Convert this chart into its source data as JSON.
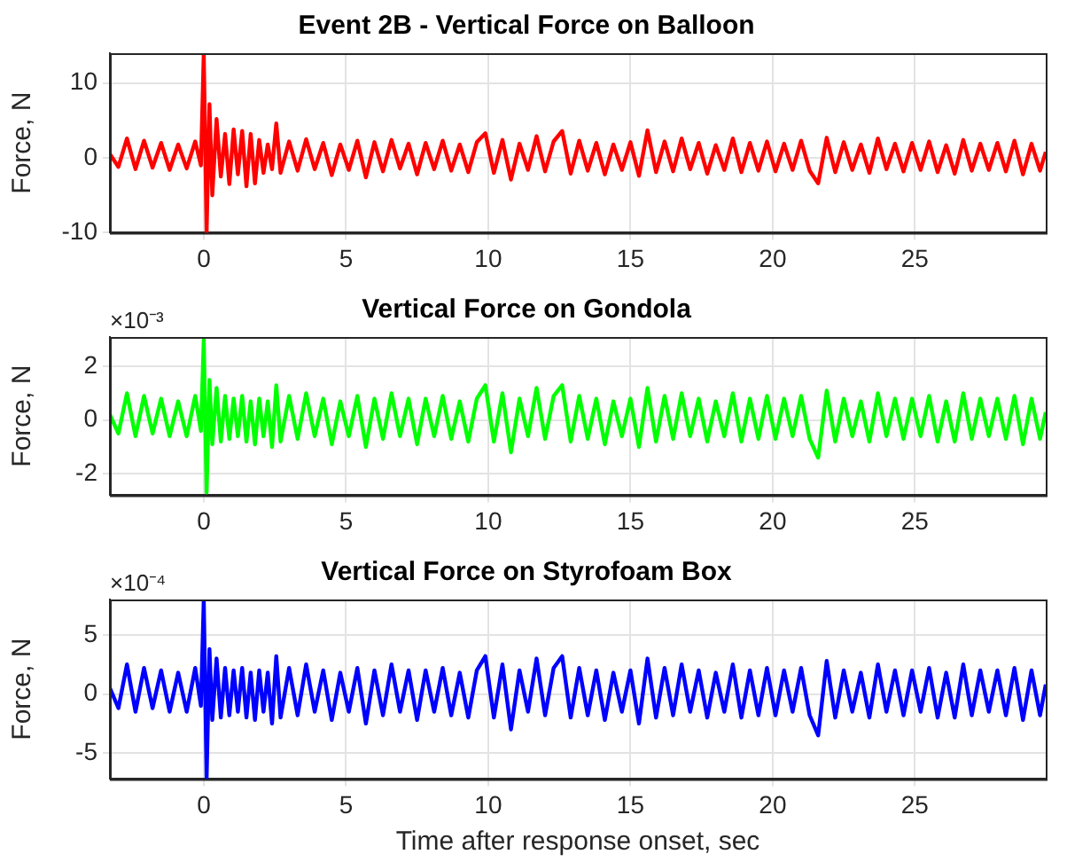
{
  "chart_data": [
    {
      "type": "line",
      "title": "Event 2B - Vertical Force on Balloon",
      "ylabel": "Force, N",
      "x": [
        -3.3,
        -3.0,
        -2.7,
        -2.4,
        -2.1,
        -1.8,
        -1.5,
        -1.2,
        -0.9,
        -0.6,
        -0.3,
        -0.1,
        0,
        0.1,
        0.2,
        0.3,
        0.45,
        0.6,
        0.75,
        0.9,
        1.05,
        1.2,
        1.35,
        1.5,
        1.65,
        1.8,
        1.95,
        2.1,
        2.25,
        2.4,
        2.55,
        2.7,
        3.0,
        3.3,
        3.6,
        3.9,
        4.2,
        4.5,
        4.8,
        5.1,
        5.4,
        5.7,
        6.0,
        6.3,
        6.6,
        6.9,
        7.2,
        7.5,
        7.8,
        8.1,
        8.4,
        8.7,
        9.0,
        9.3,
        9.6,
        9.9,
        10.2,
        10.5,
        10.8,
        11.1,
        11.4,
        11.7,
        12.0,
        12.3,
        12.6,
        12.9,
        13.2,
        13.5,
        13.8,
        14.1,
        14.4,
        14.7,
        15.0,
        15.3,
        15.6,
        15.9,
        16.2,
        16.5,
        16.8,
        17.1,
        17.4,
        17.7,
        18.0,
        18.3,
        18.6,
        18.9,
        19.2,
        19.5,
        19.8,
        20.1,
        20.4,
        20.7,
        21.0,
        21.3,
        21.6,
        21.9,
        22.2,
        22.5,
        22.8,
        23.1,
        23.4,
        23.7,
        24.0,
        24.3,
        24.6,
        24.9,
        25.2,
        25.5,
        25.8,
        26.1,
        26.4,
        26.7,
        27.0,
        27.3,
        27.6,
        27.9,
        28.2,
        28.5,
        28.8,
        29.1,
        29.4,
        29.6
      ],
      "series": [
        {
          "color": "#ff0000",
          "values": [
            0.5,
            -1.2,
            2.6,
            -1.5,
            2.3,
            -1.3,
            2.0,
            -1.6,
            1.8,
            -1.4,
            2.2,
            -1.0,
            14,
            -10,
            7.2,
            -5,
            5.2,
            -2.5,
            3.2,
            -3.5,
            3.8,
            -2.2,
            3.6,
            -3.8,
            3.2,
            -3.4,
            2.4,
            -2.0,
            1.8,
            -1.5,
            4.6,
            -2.0,
            2.2,
            -1.7,
            2.5,
            -1.5,
            2.0,
            -2.3,
            1.8,
            -1.6,
            2.3,
            -2.6,
            2.1,
            -1.8,
            2.4,
            -1.4,
            1.9,
            -2.2,
            2.0,
            -1.5,
            2.3,
            -1.7,
            1.8,
            -1.9,
            2.1,
            3.3,
            -2.0,
            2.4,
            -2.9,
            1.9,
            -1.6,
            2.9,
            -1.8,
            2.2,
            3.6,
            -2.1,
            2.3,
            -1.7,
            2.0,
            -2.2,
            1.8,
            -1.6,
            2.1,
            -2.4,
            3.7,
            -1.9,
            2.2,
            -1.8,
            2.6,
            -1.5,
            2.0,
            -2.1,
            1.7,
            -1.6,
            2.6,
            -1.9,
            2.0,
            -1.7,
            2.2,
            -1.8,
            1.9,
            -1.6,
            2.3,
            -1.7,
            -3.4,
            2.7,
            -1.9,
            2.1,
            -1.6,
            1.8,
            -2.0,
            2.6,
            -1.5,
            1.9,
            -1.8,
            2.0,
            -1.6,
            2.2,
            -1.9,
            1.7,
            -2.1,
            2.4,
            -1.7,
            1.9,
            -1.6,
            2.0,
            -1.8,
            2.3,
            -2.2,
            1.9,
            -1.7,
            0.8
          ]
        }
      ],
      "xlim": [
        -3.3,
        29.6
      ],
      "xticks": [
        0,
        5,
        10,
        15,
        20,
        25
      ],
      "ylim": [
        -10,
        14
      ],
      "yticks": [
        -10,
        0,
        10
      ],
      "grid": true,
      "legend": false,
      "marker": "none",
      "line_style": "solid"
    },
    {
      "type": "line",
      "title": "Vertical Force on Gondola",
      "ylabel": "Force, N",
      "annotations": [
        "×10⁻³"
      ],
      "x": [
        -3.3,
        -3.0,
        -2.7,
        -2.4,
        -2.1,
        -1.8,
        -1.5,
        -1.2,
        -0.9,
        -0.6,
        -0.3,
        -0.1,
        0,
        0.1,
        0.2,
        0.3,
        0.45,
        0.6,
        0.75,
        0.9,
        1.05,
        1.2,
        1.35,
        1.5,
        1.65,
        1.8,
        1.95,
        2.1,
        2.25,
        2.4,
        2.55,
        2.7,
        3.0,
        3.3,
        3.6,
        3.9,
        4.2,
        4.5,
        4.8,
        5.1,
        5.4,
        5.7,
        6.0,
        6.3,
        6.6,
        6.9,
        7.2,
        7.5,
        7.8,
        8.1,
        8.4,
        8.7,
        9.0,
        9.3,
        9.6,
        9.9,
        10.2,
        10.5,
        10.8,
        11.1,
        11.4,
        11.7,
        12.0,
        12.3,
        12.6,
        12.9,
        13.2,
        13.5,
        13.8,
        14.1,
        14.4,
        14.7,
        15.0,
        15.3,
        15.6,
        15.9,
        16.2,
        16.5,
        16.8,
        17.1,
        17.4,
        17.7,
        18.0,
        18.3,
        18.6,
        18.9,
        19.2,
        19.5,
        19.8,
        20.1,
        20.4,
        20.7,
        21.0,
        21.3,
        21.6,
        21.9,
        22.2,
        22.5,
        22.8,
        23.1,
        23.4,
        23.7,
        24.0,
        24.3,
        24.6,
        24.9,
        25.2,
        25.5,
        25.8,
        26.1,
        26.4,
        26.7,
        27.0,
        27.3,
        27.6,
        27.9,
        28.2,
        28.5,
        28.8,
        29.1,
        29.4,
        29.6
      ],
      "series": [
        {
          "color": "#00ff00",
          "values": [
            0.2,
            -0.5,
            1.0,
            -0.6,
            0.9,
            -0.5,
            0.8,
            -0.6,
            0.7,
            -0.6,
            0.9,
            -0.4,
            3.0,
            -2.7,
            1.5,
            -0.9,
            1.2,
            -0.8,
            0.9,
            -0.7,
            0.8,
            -0.6,
            0.9,
            -0.8,
            0.7,
            -0.9,
            0.8,
            -0.6,
            0.7,
            -1.0,
            1.3,
            -0.8,
            0.9,
            -0.7,
            1.0,
            -0.6,
            0.8,
            -0.9,
            0.7,
            -0.6,
            0.9,
            -1.0,
            0.8,
            -0.7,
            1.0,
            -0.6,
            0.8,
            -0.9,
            0.8,
            -0.6,
            0.9,
            -0.7,
            0.7,
            -0.8,
            0.8,
            1.3,
            -0.8,
            1.0,
            -1.2,
            0.8,
            -0.6,
            1.2,
            -0.7,
            0.9,
            1.3,
            -0.8,
            0.9,
            -0.7,
            0.8,
            -0.9,
            0.7,
            -0.6,
            0.8,
            -1.0,
            1.2,
            -0.8,
            0.9,
            -0.7,
            1.0,
            -0.6,
            0.8,
            -0.8,
            0.7,
            -0.6,
            1.0,
            -0.8,
            0.8,
            -0.7,
            0.9,
            -0.7,
            0.8,
            -0.6,
            0.9,
            -0.7,
            -1.4,
            1.1,
            -0.8,
            0.8,
            -0.6,
            0.7,
            -0.8,
            1.0,
            -0.6,
            0.8,
            -0.7,
            0.8,
            -0.6,
            0.9,
            -0.8,
            0.7,
            -0.8,
            1.0,
            -0.7,
            0.8,
            -0.6,
            0.8,
            -0.7,
            0.9,
            -0.9,
            0.8,
            -0.7,
            0.3
          ]
        }
      ],
      "xlim": [
        -3.3,
        29.6
      ],
      "xticks": [
        0,
        5,
        10,
        15,
        20,
        25
      ],
      "ylim": [
        -2.8,
        3.1
      ],
      "yticks": [
        -2,
        0,
        2
      ],
      "grid": true,
      "legend": false,
      "marker": "none",
      "line_style": "solid"
    },
    {
      "type": "line",
      "title": "Vertical Force on Styrofoam Box",
      "ylabel": "Force, N",
      "xlabel": "Time after response onset, sec",
      "annotations": [
        "×10⁻⁴"
      ],
      "x": [
        -3.3,
        -3.0,
        -2.7,
        -2.4,
        -2.1,
        -1.8,
        -1.5,
        -1.2,
        -0.9,
        -0.6,
        -0.3,
        -0.1,
        0,
        0.1,
        0.2,
        0.3,
        0.45,
        0.6,
        0.75,
        0.9,
        1.05,
        1.2,
        1.35,
        1.5,
        1.65,
        1.8,
        1.95,
        2.1,
        2.25,
        2.4,
        2.55,
        2.7,
        3.0,
        3.3,
        3.6,
        3.9,
        4.2,
        4.5,
        4.8,
        5.1,
        5.4,
        5.7,
        6.0,
        6.3,
        6.6,
        6.9,
        7.2,
        7.5,
        7.8,
        8.1,
        8.4,
        8.7,
        9.0,
        9.3,
        9.6,
        9.9,
        10.2,
        10.5,
        10.8,
        11.1,
        11.4,
        11.7,
        12.0,
        12.3,
        12.6,
        12.9,
        13.2,
        13.5,
        13.8,
        14.1,
        14.4,
        14.7,
        15.0,
        15.3,
        15.6,
        15.9,
        16.2,
        16.5,
        16.8,
        17.1,
        17.4,
        17.7,
        18.0,
        18.3,
        18.6,
        18.9,
        19.2,
        19.5,
        19.8,
        20.1,
        20.4,
        20.7,
        21.0,
        21.3,
        21.6,
        21.9,
        22.2,
        22.5,
        22.8,
        23.1,
        23.4,
        23.7,
        24.0,
        24.3,
        24.6,
        24.9,
        25.2,
        25.5,
        25.8,
        26.1,
        26.4,
        26.7,
        27.0,
        27.3,
        27.6,
        27.9,
        28.2,
        28.5,
        28.8,
        29.1,
        29.4,
        29.6
      ],
      "series": [
        {
          "color": "#0000ff",
          "values": [
            0.5,
            -1.2,
            2.5,
            -1.5,
            2.2,
            -1.2,
            2.0,
            -1.5,
            1.8,
            -1.5,
            2.2,
            -1.0,
            8.0,
            -7.2,
            3.8,
            -2.2,
            3.0,
            -2.0,
            2.2,
            -1.8,
            2.0,
            -1.5,
            2.2,
            -2.0,
            1.8,
            -2.2,
            2.0,
            -1.5,
            1.8,
            -2.5,
            3.2,
            -2.0,
            2.2,
            -1.8,
            2.5,
            -1.5,
            2.0,
            -2.2,
            1.8,
            -1.5,
            2.2,
            -2.5,
            2.0,
            -1.8,
            2.5,
            -1.5,
            2.0,
            -2.2,
            2.0,
            -1.5,
            2.2,
            -1.8,
            1.8,
            -2.0,
            2.0,
            3.2,
            -2.0,
            2.5,
            -3.0,
            2.0,
            -1.5,
            3.0,
            -1.8,
            2.2,
            3.2,
            -2.0,
            2.2,
            -1.8,
            2.0,
            -2.2,
            1.8,
            -1.5,
            2.0,
            -2.5,
            3.0,
            -2.0,
            2.2,
            -1.8,
            2.5,
            -1.5,
            2.0,
            -2.0,
            1.8,
            -1.5,
            2.5,
            -2.0,
            2.0,
            -1.8,
            2.2,
            -1.8,
            2.0,
            -1.5,
            2.2,
            -1.8,
            -3.5,
            2.8,
            -2.0,
            2.0,
            -1.5,
            1.8,
            -2.0,
            2.5,
            -1.5,
            2.0,
            -1.8,
            2.0,
            -1.5,
            2.2,
            -2.0,
            1.8,
            -2.0,
            2.5,
            -1.8,
            2.0,
            -1.5,
            2.0,
            -1.8,
            2.2,
            -2.2,
            2.0,
            -1.8,
            0.8
          ]
        }
      ],
      "xlim": [
        -3.3,
        29.6
      ],
      "xticks": [
        0,
        5,
        10,
        15,
        20,
        25
      ],
      "ylim": [
        -7.2,
        8
      ],
      "yticks": [
        -5,
        0,
        5
      ],
      "grid": true,
      "legend": false,
      "marker": "none",
      "line_style": "solid"
    }
  ]
}
